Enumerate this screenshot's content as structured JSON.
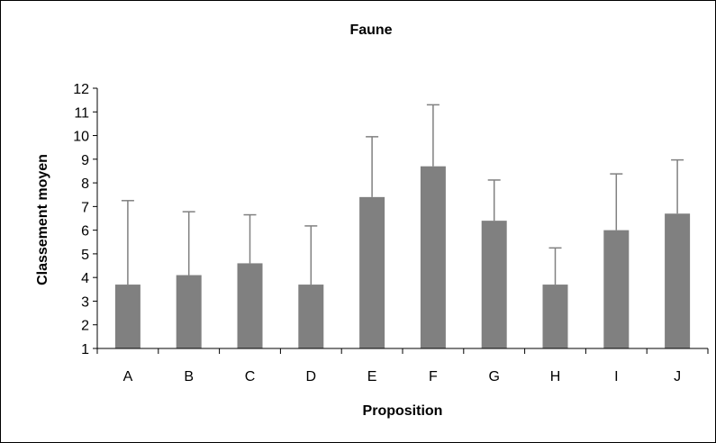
{
  "chart_data": {
    "type": "bar",
    "title": "Faune",
    "xlabel": "Proposition",
    "ylabel": "Classement moyen",
    "categories": [
      "A",
      "B",
      "C",
      "D",
      "E",
      "F",
      "G",
      "H",
      "I",
      "J"
    ],
    "values": [
      3.7,
      4.1,
      4.6,
      3.7,
      7.4,
      8.7,
      6.4,
      3.7,
      6.0,
      6.7
    ],
    "error_upper": [
      7.25,
      6.78,
      6.65,
      6.18,
      9.95,
      11.3,
      8.12,
      5.25,
      8.38,
      8.97
    ],
    "ylim": [
      1,
      12
    ],
    "yticks": [
      1,
      2,
      3,
      4,
      5,
      6,
      7,
      8,
      9,
      10,
      11,
      12
    ],
    "ytick_labels": [
      "1",
      "2",
      "3",
      "4",
      "5",
      "6",
      "7",
      "8",
      "9",
      "10",
      "11",
      "12"
    ],
    "grid": false,
    "legend": "none",
    "bar_color": "#808080",
    "error_bar_color": "#808080"
  }
}
